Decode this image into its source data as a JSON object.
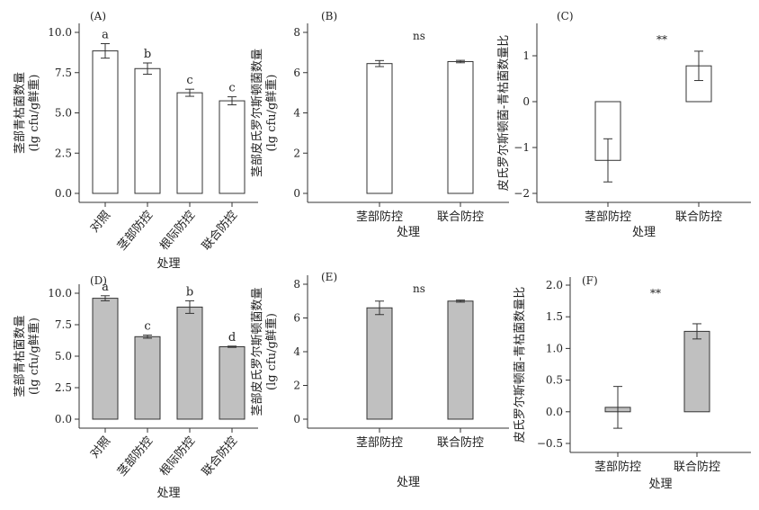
{
  "chart_data": [
    {
      "panel": "(A)",
      "type": "bar",
      "categories": [
        "对照",
        "茎部防控",
        "根际防控",
        "联合防控"
      ],
      "values": [
        8.85,
        7.75,
        6.25,
        5.75
      ],
      "errors": [
        0.45,
        0.35,
        0.22,
        0.25
      ],
      "letters": [
        "a",
        "b",
        "c",
        "c"
      ],
      "annotation": "",
      "ylabel": [
        "茎部青枯菌数量",
        "(lg cfu/g鲜重)"
      ],
      "xlabel": "处理",
      "ticks": [
        0,
        2.5,
        5,
        7.5,
        10
      ],
      "tick_labels": [
        "0.0",
        "2.5",
        "5.0",
        "7.5",
        "10.0"
      ],
      "ylim": [
        0,
        10
      ],
      "fill": "#ffffff"
    },
    {
      "panel": "(B)",
      "type": "bar",
      "categories": [
        "茎部防控",
        "联合防控"
      ],
      "values": [
        6.45,
        6.55
      ],
      "errors": [
        0.15,
        0.06
      ],
      "letters": [],
      "annotation": "ns",
      "ylabel": [
        "茎部皮氏罗尔斯顿菌数量",
        "(lg cfu/g鲜重)"
      ],
      "xlabel": "处理",
      "ticks": [
        0,
        2,
        4,
        6,
        8
      ],
      "tick_labels": [
        "0",
        "2",
        "4",
        "6",
        "8"
      ],
      "ylim": [
        0,
        8
      ],
      "fill": "#ffffff"
    },
    {
      "panel": "(C)",
      "type": "bar",
      "categories": [
        "茎部防控",
        "联合防控"
      ],
      "values": [
        -1.28,
        0.78
      ],
      "errors": [
        0.47,
        0.32
      ],
      "letters": [],
      "annotation": "**",
      "ylabel": [
        "皮氏罗尔斯顿菌-青枯菌数量比"
      ],
      "xlabel": "处理",
      "ticks": [
        -2,
        -1,
        0,
        1
      ],
      "tick_labels": [
        "−2",
        "−1",
        "0",
        "1"
      ],
      "ylim": [
        -2,
        1
      ],
      "fill": "#ffffff"
    },
    {
      "panel": "(D)",
      "type": "bar",
      "categories": [
        "对照",
        "茎部防控",
        "根际防控",
        "联合防控"
      ],
      "values": [
        9.6,
        6.55,
        8.9,
        5.75
      ],
      "errors": [
        0.2,
        0.12,
        0.5,
        0.05
      ],
      "letters": [
        "a",
        "c",
        "b",
        "d"
      ],
      "annotation": "",
      "ylabel": [
        "茎部青枯菌数量",
        "(lg cfu/g鲜重)"
      ],
      "xlabel": "处理",
      "ticks": [
        0,
        2.5,
        5,
        7.5,
        10
      ],
      "tick_labels": [
        "0.0",
        "2.5",
        "5.0",
        "7.5",
        "10.0"
      ],
      "ylim": [
        0,
        10
      ],
      "fill": "#c0c0c0"
    },
    {
      "panel": "(E)",
      "type": "bar",
      "categories": [
        "茎部防控",
        "联合防控"
      ],
      "values": [
        6.6,
        7.0
      ],
      "errors": [
        0.4,
        0.06
      ],
      "letters": [],
      "annotation": "ns",
      "ylabel": [
        "茎部皮氏罗尔斯顿菌数量",
        "(lg cfu/g鲜重)"
      ],
      "xlabel": "处理",
      "ticks": [
        0,
        2,
        4,
        6,
        8
      ],
      "tick_labels": [
        "0",
        "2",
        "4",
        "6",
        "8"
      ],
      "ylim": [
        0,
        8
      ],
      "fill": "#c0c0c0"
    },
    {
      "panel": "(F)",
      "type": "bar",
      "categories": [
        "茎部防控",
        "联合防控"
      ],
      "values": [
        0.07,
        1.27
      ],
      "errors": [
        0.33,
        0.12
      ],
      "letters": [],
      "annotation": "**",
      "ylabel": [
        "皮氏罗尔斯顿菌-青枯菌数量比"
      ],
      "xlabel": "处理",
      "ticks": [
        -0.5,
        0,
        0.5,
        1,
        1.5,
        2
      ],
      "tick_labels": [
        "−0.5",
        "0.0",
        "0.5",
        "1.0",
        "1.5",
        "2.0"
      ],
      "ylim": [
        -0.5,
        2
      ],
      "fill": "#c0c0c0"
    }
  ]
}
